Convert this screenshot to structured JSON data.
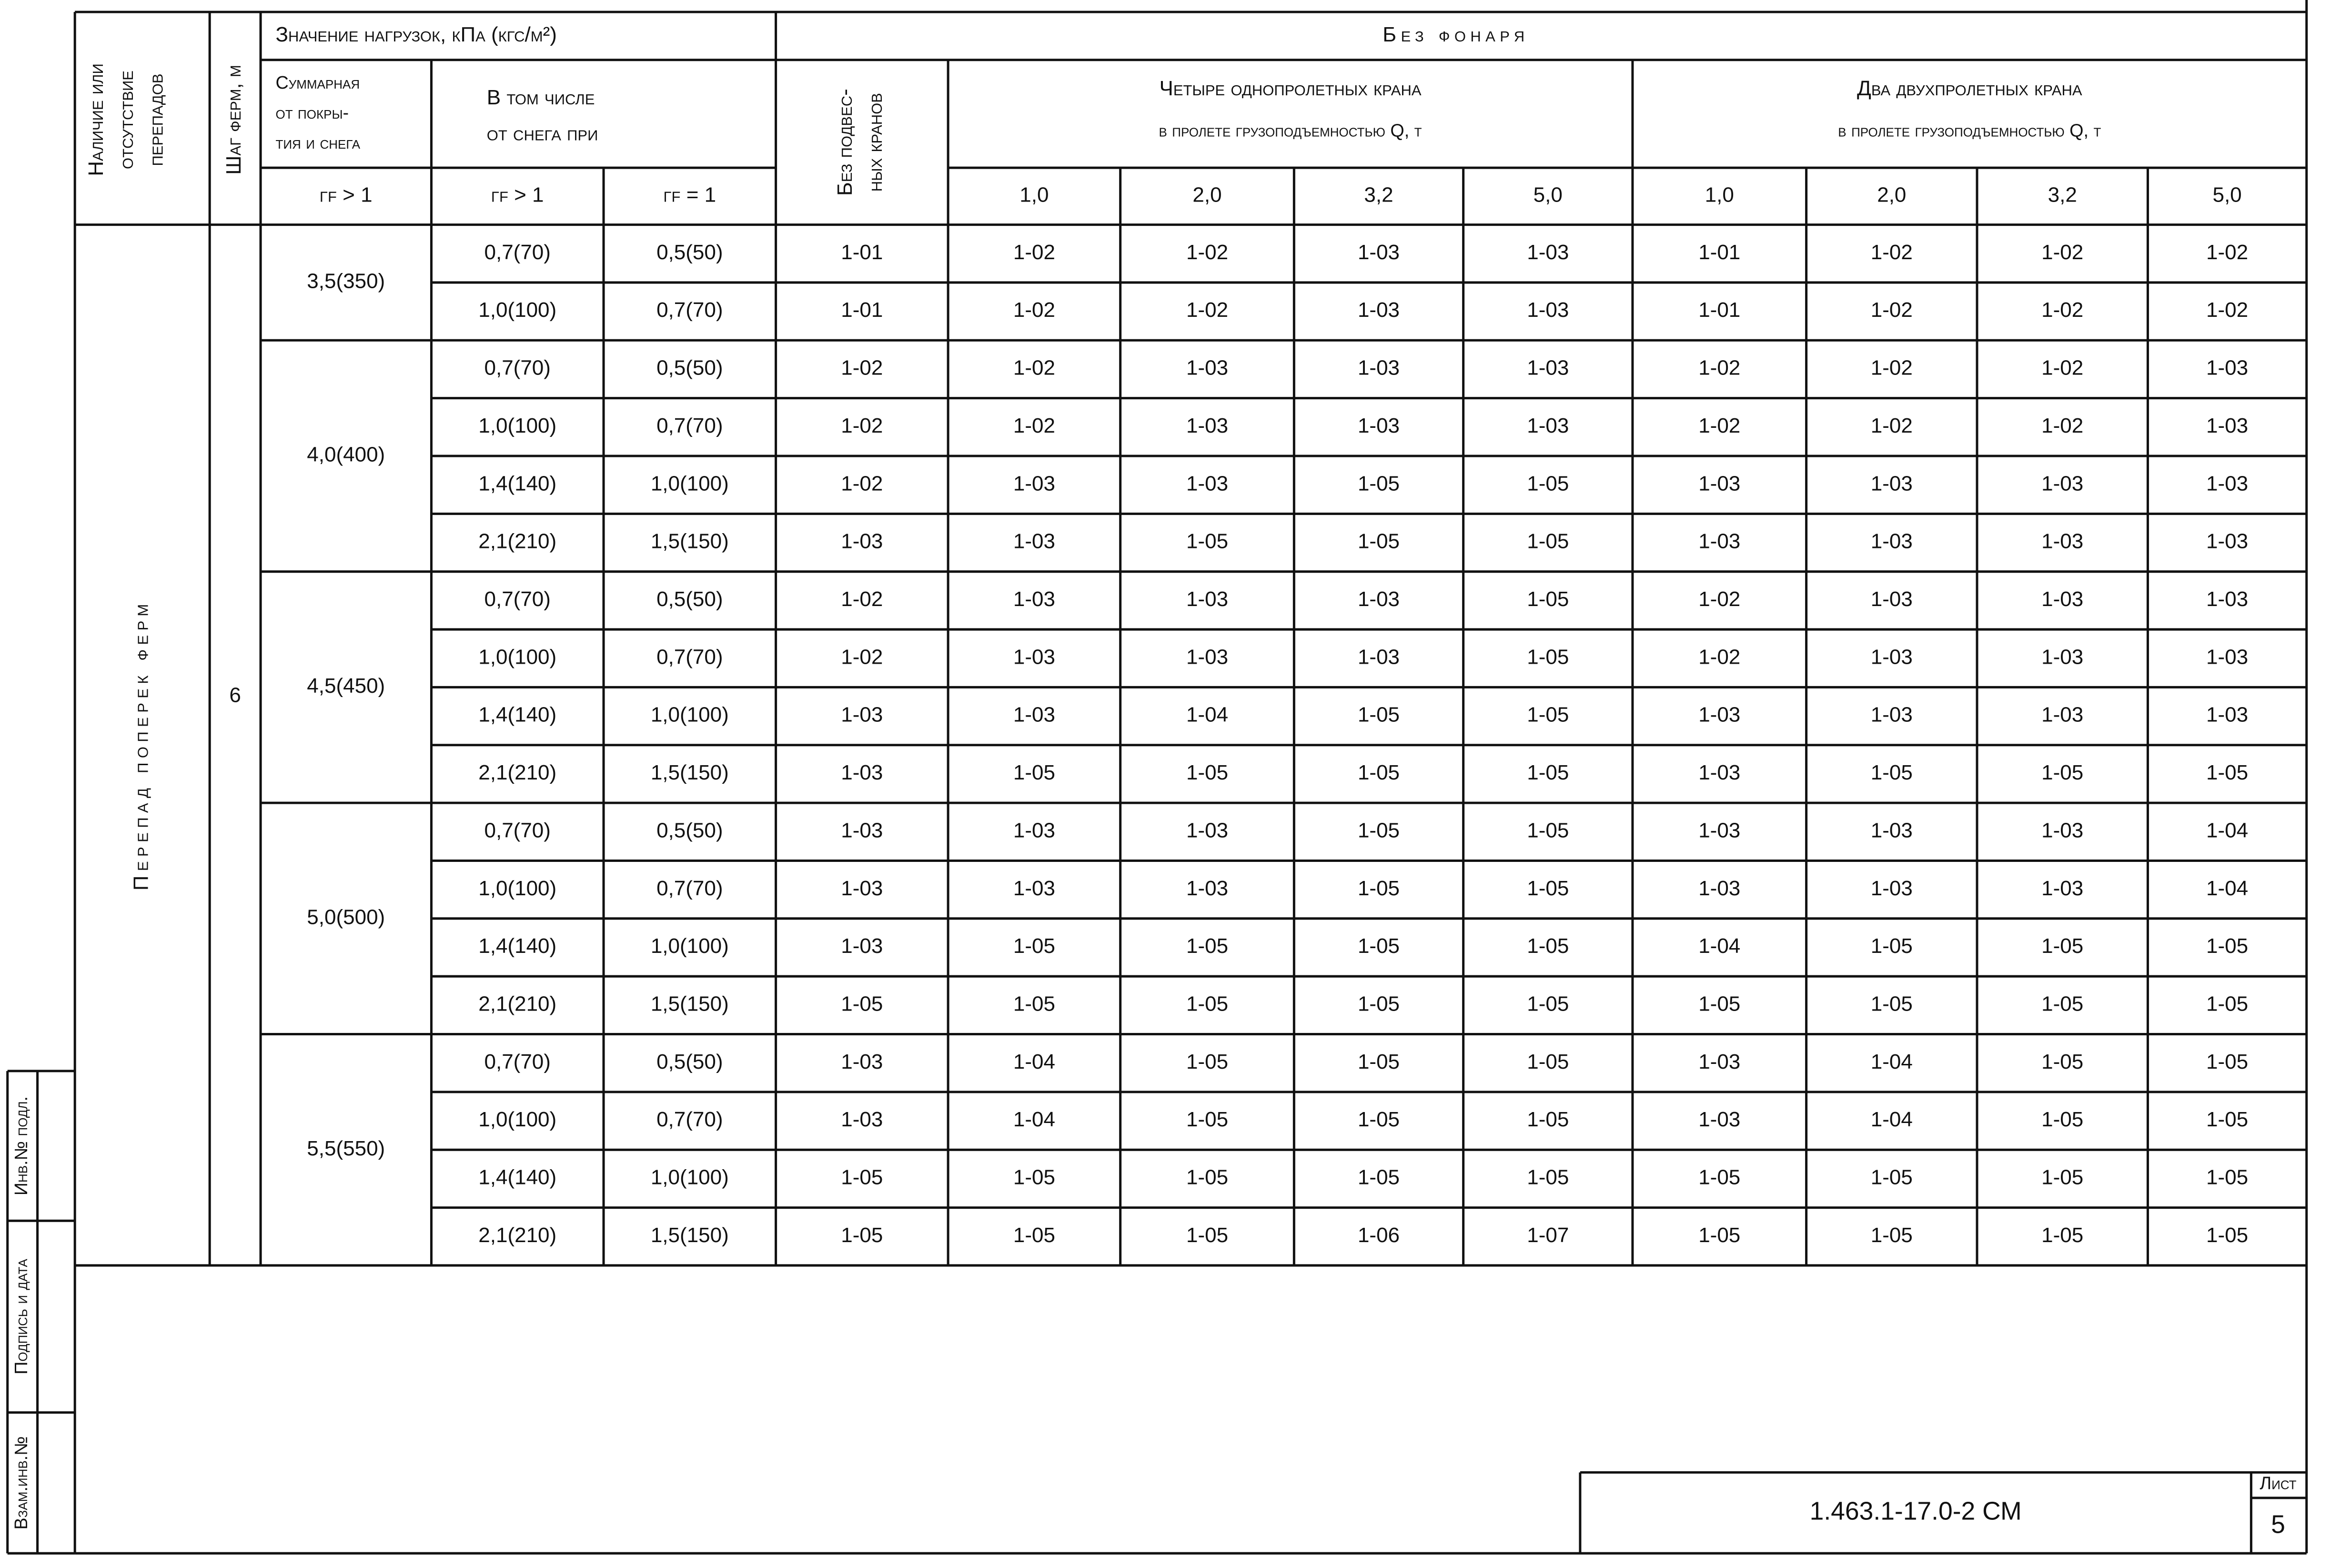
{
  "header": {
    "presence": [
      "Наличие или",
      "отсутствие",
      "перепадов"
    ],
    "step": "Шаг ферм, м",
    "loads": "Значение нагрузок, кПа (кгс/м²)",
    "total": [
      "Суммарная",
      "от покры-",
      "тия и снега"
    ],
    "snow": [
      "В том числе",
      "от снега при"
    ],
    "gamma_total": "γf > 1",
    "gamma_snow_gt": "γf > 1",
    "gamma_snow_eq": "γf = 1",
    "no_lantern": "Без фонаря",
    "no_cranes": [
      "Без подвес-",
      "ных кранов"
    ],
    "four_cranes": [
      "Четыре однопролетных крана",
      "в пролете грузоподъемностью Q, т"
    ],
    "two_cranes": [
      "Два двухпролетных крана",
      "в пролете грузоподъемностью Q, т"
    ],
    "capacities": [
      "1,0",
      "2,0",
      "3,2",
      "5,0",
      "1,0",
      "2,0",
      "3,2",
      "5,0"
    ]
  },
  "body": {
    "drop": "Перепад поперек ферм",
    "step": "6",
    "groups": [
      {
        "total": "3,5(350)",
        "rows": [
          [
            "0,7(70)",
            "0,5(50)",
            "1-01",
            "1-02",
            "1-02",
            "1-03",
            "1-03",
            "1-01",
            "1-02",
            "1-02",
            "1-02"
          ],
          [
            "1,0(100)",
            "0,7(70)",
            "1-01",
            "1-02",
            "1-02",
            "1-03",
            "1-03",
            "1-01",
            "1-02",
            "1-02",
            "1-02"
          ]
        ]
      },
      {
        "total": "4,0(400)",
        "rows": [
          [
            "0,7(70)",
            "0,5(50)",
            "1-02",
            "1-02",
            "1-03",
            "1-03",
            "1-03",
            "1-02",
            "1-02",
            "1-02",
            "1-03"
          ],
          [
            "1,0(100)",
            "0,7(70)",
            "1-02",
            "1-02",
            "1-03",
            "1-03",
            "1-03",
            "1-02",
            "1-02",
            "1-02",
            "1-03"
          ],
          [
            "1,4(140)",
            "1,0(100)",
            "1-02",
            "1-03",
            "1-03",
            "1-05",
            "1-05",
            "1-03",
            "1-03",
            "1-03",
            "1-03"
          ],
          [
            "2,1(210)",
            "1,5(150)",
            "1-03",
            "1-03",
            "1-05",
            "1-05",
            "1-05",
            "1-03",
            "1-03",
            "1-03",
            "1-03"
          ]
        ]
      },
      {
        "total": "4,5(450)",
        "rows": [
          [
            "0,7(70)",
            "0,5(50)",
            "1-02",
            "1-03",
            "1-03",
            "1-03",
            "1-05",
            "1-02",
            "1-03",
            "1-03",
            "1-03"
          ],
          [
            "1,0(100)",
            "0,7(70)",
            "1-02",
            "1-03",
            "1-03",
            "1-03",
            "1-05",
            "1-02",
            "1-03",
            "1-03",
            "1-03"
          ],
          [
            "1,4(140)",
            "1,0(100)",
            "1-03",
            "1-03",
            "1-04",
            "1-05",
            "1-05",
            "1-03",
            "1-03",
            "1-03",
            "1-03"
          ],
          [
            "2,1(210)",
            "1,5(150)",
            "1-03",
            "1-05",
            "1-05",
            "1-05",
            "1-05",
            "1-03",
            "1-05",
            "1-05",
            "1-05"
          ]
        ]
      },
      {
        "total": "5,0(500)",
        "rows": [
          [
            "0,7(70)",
            "0,5(50)",
            "1-03",
            "1-03",
            "1-03",
            "1-05",
            "1-05",
            "1-03",
            "1-03",
            "1-03",
            "1-04"
          ],
          [
            "1,0(100)",
            "0,7(70)",
            "1-03",
            "1-03",
            "1-03",
            "1-05",
            "1-05",
            "1-03",
            "1-03",
            "1-03",
            "1-04"
          ],
          [
            "1,4(140)",
            "1,0(100)",
            "1-03",
            "1-05",
            "1-05",
            "1-05",
            "1-05",
            "1-04",
            "1-05",
            "1-05",
            "1-05"
          ],
          [
            "2,1(210)",
            "1,5(150)",
            "1-05",
            "1-05",
            "1-05",
            "1-05",
            "1-05",
            "1-05",
            "1-05",
            "1-05",
            "1-05"
          ]
        ]
      },
      {
        "total": "5,5(550)",
        "rows": [
          [
            "0,7(70)",
            "0,5(50)",
            "1-03",
            "1-04",
            "1-05",
            "1-05",
            "1-05",
            "1-03",
            "1-04",
            "1-05",
            "1-05"
          ],
          [
            "1,0(100)",
            "0,7(70)",
            "1-03",
            "1-04",
            "1-05",
            "1-05",
            "1-05",
            "1-03",
            "1-04",
            "1-05",
            "1-05"
          ],
          [
            "1,4(140)",
            "1,0(100)",
            "1-05",
            "1-05",
            "1-05",
            "1-05",
            "1-05",
            "1-05",
            "1-05",
            "1-05",
            "1-05"
          ],
          [
            "2,1(210)",
            "1,5(150)",
            "1-05",
            "1-05",
            "1-05",
            "1-06",
            "1-07",
            "1-05",
            "1-05",
            "1-05",
            "1-05"
          ]
        ]
      }
    ]
  },
  "stamp": [
    "Инв.№ подл.",
    "Подпись и дата",
    "Взам.инв.№"
  ],
  "title_block": {
    "code": "1.463.1-17.0-2 СМ",
    "sheet_label": "Лист",
    "sheet": "5"
  }
}
